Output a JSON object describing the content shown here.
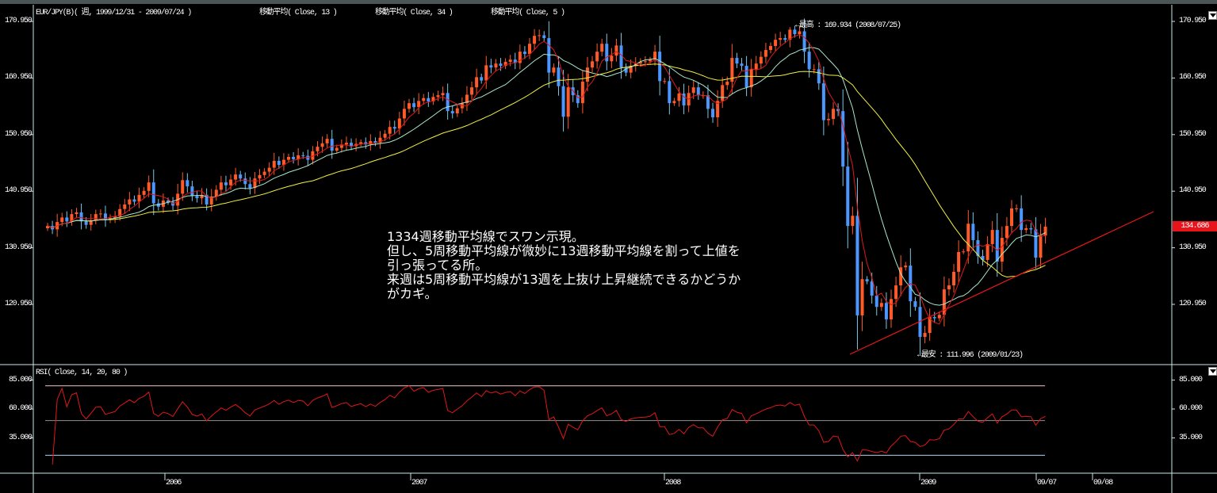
{
  "header": {
    "symbol_label": "EUR/JPY(B)( 週, 1999/12/31 - 2009/07/24 )",
    "indicators": [
      {
        "label": "移動平均( Close, 13 )",
        "color": "#a8e8c8"
      },
      {
        "label": "移動平均( Close, 34 )",
        "color": "#f0f040"
      },
      {
        "label": "移動平均( Close, 5 )",
        "color": "#e01818"
      }
    ]
  },
  "current_price": "134.686",
  "colors": {
    "up": "#ff5a28",
    "down": "#4c96ff",
    "trendline": "#e81818",
    "rsi": "#e01818",
    "rsi_upper": "#f0c8c8",
    "rsi_mid": "#909090",
    "rsi_lower": "#b0d0f0",
    "axis": "#c8e8e8"
  },
  "annotations": {
    "high": "←最高 : 169.934 (2008/07/25)",
    "low": "←最安 : 111.996 (2009/01/23)",
    "note_lines": [
      "1334週移動平均線でスワン示現。",
      "但し、5周移動平均線が微妙に13週移動平均線を割って上値を",
      "引っ張ってる所。",
      "来週は5周移動平均線が13週を上抜け上昇継続できるかどうか",
      "がカギ。"
    ]
  },
  "rsi_panel": {
    "label": "RSI( Close, 14, 20, 80 )"
  },
  "chart_data": [
    {
      "type": "candlestick",
      "title": "EUR/JPY(B)( 週, 1999/12/31 - 2009/07/24 )",
      "last_date": "2009/07/24",
      "interval": "weekly",
      "ylim": [
        106,
        172
      ],
      "yticks": [
        "170.950",
        "160.950",
        "150.950",
        "140.950",
        "130.950",
        "120.950"
      ],
      "xticks": [
        "2006",
        "2007",
        "2008",
        "2009",
        "09/07",
        "09/08"
      ],
      "high_point": {
        "value": 169.934,
        "date": "2008/07/25"
      },
      "low_point": {
        "value": 111.996,
        "date": "2009/01/23"
      },
      "moving_averages": [
        5,
        13,
        34
      ],
      "trendline": {
        "from": {
          "date": "2008/10/24",
          "value": 112.5
        },
        "to": {
          "date": "2009/07/24",
          "value": 128.5
        }
      },
      "close": [
        134.8,
        134.2,
        135.5,
        136.3,
        135.6,
        136.9,
        137.2,
        135.6,
        135.0,
        135.8,
        136.9,
        137.0,
        135.9,
        136.2,
        136.5,
        137.8,
        138.6,
        139.5,
        139.1,
        140.3,
        141.0,
        142.5,
        138.8,
        138.2,
        139.3,
        139.0,
        138.4,
        140.5,
        142.9,
        141.8,
        140.1,
        139.7,
        140.3,
        138.6,
        140.0,
        141.2,
        142.5,
        142.0,
        143.0,
        143.9,
        143.2,
        142.2,
        141.5,
        143.2,
        143.8,
        144.4,
        145.1,
        146.3,
        145.6,
        146.5,
        147.0,
        146.6,
        147.3,
        147.2,
        146.5,
        148.0,
        148.8,
        149.4,
        150.2,
        148.1,
        148.6,
        149.2,
        149.5,
        148.9,
        149.3,
        149.6,
        149.2,
        149.8,
        149.5,
        150.4,
        151.1,
        152.3,
        152.0,
        153.8,
        155.5,
        156.5,
        155.8,
        156.9,
        157.4,
        156.8,
        157.6,
        157.9,
        158.3,
        155.1,
        154.7,
        155.6,
        156.5,
        158.0,
        159.3,
        161.1,
        160.5,
        163.2,
        162.8,
        163.5,
        163.1,
        163.8,
        164.2,
        163.6,
        165.6,
        165.2,
        167.0,
        168.4,
        168.5,
        168.0,
        161.9,
        162.8,
        159.5,
        154.1,
        159.3,
        157.9,
        156.5,
        160.3,
        162.8,
        163.9,
        165.6,
        167.0,
        163.9,
        164.9,
        166.7,
        162.8,
        161.9,
        163.1,
        163.5,
        163.8,
        163.9,
        164.2,
        165.6,
        160.4,
        160.4,
        156.5,
        156.9,
        158.2,
        156.1,
        158.3,
        159.3,
        157.9,
        157.9,
        155.5,
        154.0,
        156.9,
        159.7,
        160.3,
        164.5,
        163.5,
        163.1,
        159.3,
        162.5,
        163.5,
        164.7,
        165.9,
        166.6,
        167.7,
        168.0,
        167.7,
        169.5,
        168.7,
        169.2,
        165.6,
        162.5,
        162.5,
        160.0,
        153.5,
        153.7,
        155.5,
        155.1,
        145.3,
        134.8,
        136.6,
        119.0,
        125.4,
        125.0,
        122.5,
        120.5,
        121.2,
        118.3,
        121.9,
        124.3,
        127.5,
        127.8,
        121.5,
        120.5,
        115.2,
        115.9,
        118.7,
        118.5,
        119.1,
        123.6,
        124.3,
        126.7,
        130.2,
        130.3,
        135.2,
        132.3,
        129.5,
        128.8,
        131.6,
        134.1,
        128.5,
        132.7,
        134.8,
        137.9,
        137.9,
        134.1,
        134.4,
        134.2,
        129.2,
        133.1,
        134.686
      ]
    },
    {
      "type": "line",
      "title": "RSI( Close, 14, 20, 80 )",
      "period": 14,
      "levels": [
        20,
        50,
        80
      ],
      "ylim": [
        10,
        92
      ],
      "yticks": [
        "85.000",
        "60.000",
        "35.000"
      ]
    }
  ]
}
